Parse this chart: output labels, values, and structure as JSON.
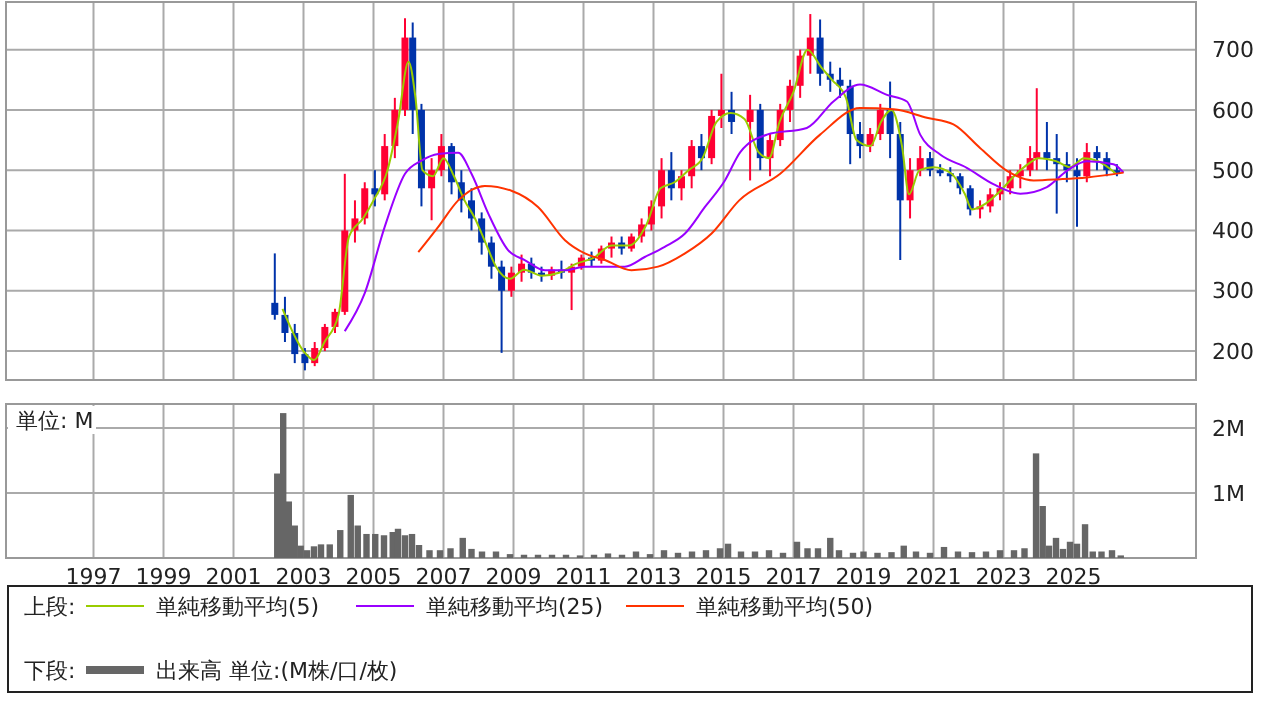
{
  "chart_data": [
    {
      "type": "candlestick",
      "xlim": [
        1994.5,
        2028.5
      ],
      "xticks": [
        1997,
        1999,
        2001,
        2003,
        2005,
        2007,
        2009,
        2011,
        2013,
        2015,
        2017,
        2019,
        2021,
        2023,
        2025
      ],
      "ylim": [
        152,
        779
      ],
      "yticks": [
        200,
        300,
        400,
        500,
        600,
        700
      ],
      "grid": true,
      "tick_labels": "y",
      "legend": "bottom",
      "legend_title": "上段:",
      "colors": [
        "#0033aa",
        "#0033aa",
        "#0033aa",
        "#0033aa",
        "#ff0033",
        "#ff0033",
        "#ff0033",
        "#ff0033",
        "#ff0033",
        "#ff0033",
        "#0033aa",
        "#ff0033",
        "#ff0033",
        "#ff0033",
        "#0033aa",
        "#0033aa",
        "#ff0033",
        "#ff0033",
        "#0033aa",
        "#0033aa",
        "#0033aa",
        "#0033aa",
        "#0033aa",
        "#0033aa",
        "#ff0033",
        "#ff0033",
        "#0033aa",
        "#0033aa",
        "#ff0033",
        "#0033aa",
        "#ff0033",
        "#ff0033",
        "#0033aa",
        "#ff0033",
        "#ff0033",
        "#0033aa",
        "#ff0033",
        "#ff0033",
        "#ff0033",
        "#ff0033",
        "#0033aa",
        "#ff0033",
        "#ff0033",
        "#0033aa",
        "#ff0033",
        "#ff0033",
        "#0033aa",
        "#ff0033",
        "#0033aa",
        "#ff0033",
        "#ff0033",
        "#ff0033",
        "#ff0033",
        "#ff0033",
        "#0033aa",
        "#0033aa",
        "#0033aa",
        "#0033aa",
        "#0033aa",
        "#ff0033",
        "#ff0033",
        "#0033aa",
        "#0033aa",
        "#ff0033",
        "#ff0033",
        "#0033aa",
        "#0033aa",
        "#0033aa",
        "#0033aa",
        "#0033aa",
        "#ff0033",
        "#ff0033",
        "#ff0033",
        "#ff0033",
        "#ff0033",
        "#ff0033",
        "#ff0033",
        "#0033aa",
        "#0033aa",
        "#0033aa",
        "#0033aa",
        "#ff0033",
        "#0033aa",
        "#0033aa",
        "#0033aa"
      ],
      "x": [
        2002.18,
        2002.47,
        2002.75,
        2003.04,
        2003.32,
        2003.61,
        2003.9,
        2004.18,
        2004.47,
        2004.75,
        2005.04,
        2005.32,
        2005.61,
        2005.9,
        2006.12,
        2006.37,
        2006.66,
        2006.94,
        2007.23,
        2007.51,
        2007.8,
        2008.09,
        2008.37,
        2008.66,
        2008.94,
        2009.23,
        2009.51,
        2009.8,
        2010.09,
        2010.37,
        2010.66,
        2010.94,
        2011.23,
        2011.51,
        2011.8,
        2012.09,
        2012.37,
        2012.66,
        2012.94,
        2013.23,
        2013.51,
        2013.8,
        2014.09,
        2014.37,
        2014.66,
        2014.94,
        2015.23,
        2015.76,
        2016.05,
        2016.33,
        2016.62,
        2016.9,
        2017.19,
        2017.48,
        2017.76,
        2018.05,
        2018.33,
        2018.62,
        2018.9,
        2019.19,
        2019.48,
        2019.76,
        2020.05,
        2020.33,
        2020.62,
        2020.9,
        2021.19,
        2021.48,
        2021.76,
        2022.05,
        2022.33,
        2022.62,
        2022.9,
        2023.19,
        2023.48,
        2023.76,
        2023.95,
        2024.24,
        2024.52,
        2024.81,
        2025.1,
        2025.38,
        2025.67,
        2025.95,
        2026.24
      ],
      "ohlc": [
        [
          280,
          362,
          252,
          260
        ],
        [
          260,
          290,
          215,
          230
        ],
        [
          230,
          245,
          180,
          195
        ],
        [
          195,
          205,
          168,
          180
        ],
        [
          180,
          215,
          175,
          205
        ],
        [
          205,
          245,
          200,
          240
        ],
        [
          240,
          270,
          230,
          265
        ],
        [
          265,
          494,
          260,
          400
        ],
        [
          400,
          450,
          380,
          420
        ],
        [
          420,
          480,
          410,
          470
        ],
        [
          470,
          500,
          440,
          460
        ],
        [
          460,
          560,
          450,
          540
        ],
        [
          540,
          620,
          520,
          600
        ],
        [
          600,
          752,
          590,
          720
        ],
        [
          720,
          745,
          560,
          600
        ],
        [
          600,
          610,
          440,
          470
        ],
        [
          470,
          520,
          417,
          500
        ],
        [
          500,
          560,
          490,
          540
        ],
        [
          540,
          545,
          460,
          480
        ],
        [
          480,
          500,
          430,
          450
        ],
        [
          450,
          470,
          400,
          420
        ],
        [
          420,
          430,
          360,
          380
        ],
        [
          380,
          390,
          320,
          340
        ],
        [
          340,
          350,
          197,
          300
        ],
        [
          300,
          340,
          290,
          330
        ],
        [
          330,
          360,
          315,
          345
        ],
        [
          345,
          355,
          320,
          330
        ],
        [
          330,
          340,
          315,
          325
        ],
        [
          325,
          340,
          318,
          335
        ],
        [
          335,
          350,
          320,
          330
        ],
        [
          330,
          345,
          268,
          340
        ],
        [
          340,
          360,
          335,
          355
        ],
        [
          355,
          365,
          340,
          350
        ],
        [
          350,
          375,
          345,
          370
        ],
        [
          370,
          390,
          355,
          380
        ],
        [
          380,
          390,
          360,
          370
        ],
        [
          370,
          395,
          365,
          390
        ],
        [
          390,
          420,
          380,
          410
        ],
        [
          410,
          450,
          400,
          440
        ],
        [
          440,
          520,
          420,
          500
        ],
        [
          500,
          530,
          450,
          470
        ],
        [
          470,
          500,
          450,
          490
        ],
        [
          490,
          550,
          470,
          540
        ],
        [
          540,
          560,
          500,
          520
        ],
        [
          520,
          600,
          510,
          590
        ],
        [
          590,
          660,
          570,
          600
        ],
        [
          600,
          630,
          560,
          580
        ],
        [
          580,
          625,
          483,
          600
        ],
        [
          600,
          610,
          500,
          520
        ],
        [
          520,
          560,
          490,
          550
        ],
        [
          550,
          610,
          540,
          600
        ],
        [
          600,
          650,
          580,
          640
        ],
        [
          640,
          700,
          620,
          690
        ],
        [
          690,
          759,
          660,
          720
        ],
        [
          720,
          750,
          640,
          660
        ],
        [
          660,
          680,
          630,
          650
        ],
        [
          650,
          670,
          620,
          640
        ],
        [
          640,
          650,
          510,
          560
        ],
        [
          560,
          580,
          520,
          540
        ],
        [
          540,
          570,
          530,
          560
        ],
        [
          560,
          610,
          550,
          600
        ],
        [
          600,
          647,
          520,
          560
        ],
        [
          560,
          580,
          351,
          450
        ],
        [
          450,
          520,
          420,
          500
        ],
        [
          500,
          540,
          490,
          520
        ],
        [
          520,
          530,
          490,
          500
        ],
        [
          500,
          510,
          490,
          495
        ],
        [
          495,
          505,
          480,
          490
        ],
        [
          490,
          495,
          460,
          470
        ],
        [
          470,
          475,
          425,
          435
        ],
        [
          435,
          450,
          420,
          440
        ],
        [
          440,
          470,
          430,
          460
        ],
        [
          460,
          480,
          450,
          470
        ],
        [
          470,
          500,
          460,
          490
        ],
        [
          490,
          510,
          470,
          500
        ],
        [
          500,
          540,
          490,
          520
        ],
        [
          520,
          636,
          500,
          530
        ],
        [
          530,
          580,
          500,
          520
        ],
        [
          520,
          560,
          428,
          510
        ],
        [
          510,
          530,
          480,
          500
        ],
        [
          500,
          520,
          406,
          490
        ],
        [
          490,
          545,
          480,
          530
        ],
        [
          530,
          540,
          500,
          520
        ],
        [
          520,
          530,
          490,
          500
        ],
        [
          500,
          510,
          490,
          495
        ]
      ],
      "series": [
        {
          "type": "line",
          "name": "単純移動平均(5)",
          "color": "#99cc00",
          "x": [
            2002.4,
            2003.0,
            2003.3,
            2003.6,
            2004.0,
            2004.3,
            2004.7,
            2005.0,
            2005.4,
            2005.7,
            2006.0,
            2006.2,
            2006.4,
            2006.7,
            2007.0,
            2007.3,
            2007.6,
            2007.9,
            2008.2,
            2008.5,
            2008.9,
            2009.3,
            2009.8,
            2010.3,
            2010.8,
            2011.3,
            2011.8,
            2012.3,
            2012.8,
            2013.2,
            2013.6,
            2014.0,
            2014.4,
            2014.8,
            2015.2,
            2015.6,
            2016.0,
            2016.3,
            2016.6,
            2017.0,
            2017.4,
            2017.8,
            2018.1,
            2018.5,
            2018.8,
            2019.2,
            2019.5,
            2019.8,
            2020.1,
            2020.3,
            2020.6,
            2021.0,
            2021.5,
            2021.9,
            2022.1,
            2022.5,
            2022.9,
            2023.3,
            2023.7,
            2024.0,
            2024.5,
            2024.9,
            2025.3,
            2025.7,
            2026.2
          ],
          "values": [
            270,
            200,
            185,
            215,
            260,
            390,
            420,
            450,
            500,
            580,
            680,
            620,
            500,
            490,
            520,
            490,
            450,
            420,
            380,
            340,
            320,
            335,
            325,
            330,
            345,
            355,
            375,
            375,
            410,
            470,
            480,
            500,
            520,
            580,
            595,
            585,
            530,
            520,
            580,
            630,
            700,
            670,
            650,
            620,
            550,
            540,
            580,
            600,
            540,
            460,
            500,
            505,
            495,
            460,
            435,
            445,
            465,
            490,
            510,
            520,
            515,
            505,
            520,
            515,
            495
          ]
        },
        {
          "type": "line",
          "name": "単純移動平均(25)",
          "color": "#9900ff",
          "x": [
            2004.18,
            2004.75,
            2005.32,
            2005.9,
            2006.37,
            2006.85,
            2007.42,
            2007.8,
            2008.28,
            2008.85,
            2009.32,
            2009.9,
            2010.47,
            2011.04,
            2011.61,
            2012.18,
            2012.75,
            2013.32,
            2013.9,
            2014.47,
            2015.04,
            2015.48,
            2016.24,
            2017.38,
            2018.14,
            2018.9,
            2019.67,
            2020.24,
            2020.62,
            2021.19,
            2021.95,
            2022.71,
            2023.48,
            2024.24,
            2024.81,
            2025.38,
            2026.14,
            2026.43
          ],
          "values": [
            233,
            296,
            406,
            494,
            516,
            527,
            529,
            494,
            428,
            367,
            351,
            334,
            334,
            340,
            340,
            340,
            356,
            373,
            395,
            439,
            483,
            530,
            559,
            570,
            614,
            642,
            625,
            614,
            559,
            526,
            504,
            477,
            461,
            472,
            499,
            515,
            510,
            496
          ]
        },
        {
          "type": "line",
          "name": "単純移動平均(50)",
          "color": "#ff3300",
          "x": [
            2006.28,
            2006.85,
            2007.42,
            2008.18,
            2008.94,
            2009.7,
            2010.47,
            2011.04,
            2011.61,
            2012.37,
            2013.13,
            2013.9,
            2014.66,
            2015.45,
            2016.62,
            2017.76,
            2018.9,
            2019.86,
            2020.81,
            2021.57,
            2022.33,
            2023.1,
            2023.86,
            2024.62,
            2025.38,
            2026.43
          ],
          "values": [
            364,
            406,
            450,
            474,
            466,
            439,
            384,
            362,
            351,
            334,
            340,
            362,
            395,
            450,
            494,
            559,
            603,
            601,
            587,
            576,
            537,
            499,
            483,
            485,
            488,
            496
          ]
        }
      ]
    },
    {
      "type": "bar",
      "ylabel": "単位: M",
      "xlim": [
        1994.5,
        2028.5
      ],
      "xticks": [
        1997,
        1999,
        2001,
        2003,
        2005,
        2007,
        2009,
        2011,
        2013,
        2015,
        2017,
        2019,
        2021,
        2023,
        2025
      ],
      "ylim": [
        0,
        2.37
      ],
      "yticks": [
        {
          "value": 1,
          "label": "1M"
        },
        {
          "value": 2,
          "label": "2M"
        }
      ],
      "grid": true,
      "legend": "bottom",
      "legend_title": "下段:",
      "x": [
        2002.25,
        2002.42,
        2002.58,
        2002.75,
        2002.92,
        2003.1,
        2003.3,
        2003.5,
        2003.75,
        2004.05,
        2004.35,
        2004.55,
        2004.8,
        2005.05,
        2005.3,
        2005.55,
        2005.7,
        2005.9,
        2006.1,
        2006.3,
        2006.6,
        2006.9,
        2007.2,
        2007.55,
        2007.8,
        2008.1,
        2008.5,
        2008.9,
        2009.3,
        2009.7,
        2010.1,
        2010.5,
        2010.9,
        2011.3,
        2011.7,
        2012.1,
        2012.5,
        2012.9,
        2013.3,
        2013.7,
        2014.1,
        2014.5,
        2014.9,
        2015.13,
        2015.5,
        2015.9,
        2016.3,
        2016.7,
        2017.1,
        2017.4,
        2017.7,
        2018.05,
        2018.3,
        2018.7,
        2019.0,
        2019.4,
        2019.8,
        2020.15,
        2020.5,
        2020.9,
        2021.3,
        2021.7,
        2022.1,
        2022.5,
        2022.9,
        2023.3,
        2023.6,
        2023.93,
        2024.12,
        2024.3,
        2024.5,
        2024.7,
        2024.9,
        2025.1,
        2025.33,
        2025.55,
        2025.8,
        2026.1,
        2026.35
      ],
      "series": [
        {
          "name": "出来高 単位:(M株/口/枚)",
          "color": "#666666",
          "values": [
            1.3,
            2.23,
            0.87,
            0.5,
            0.19,
            0.12,
            0.18,
            0.21,
            0.21,
            0.43,
            0.97,
            0.5,
            0.37,
            0.37,
            0.35,
            0.4,
            0.45,
            0.35,
            0.37,
            0.2,
            0.12,
            0.12,
            0.15,
            0.31,
            0.14,
            0.1,
            0.1,
            0.06,
            0.05,
            0.05,
            0.05,
            0.05,
            0.04,
            0.05,
            0.07,
            0.05,
            0.1,
            0.06,
            0.12,
            0.08,
            0.1,
            0.12,
            0.15,
            0.22,
            0.1,
            0.1,
            0.12,
            0.08,
            0.25,
            0.15,
            0.15,
            0.31,
            0.12,
            0.08,
            0.1,
            0.08,
            0.09,
            0.19,
            0.1,
            0.08,
            0.17,
            0.1,
            0.09,
            0.1,
            0.12,
            0.12,
            0.15,
            1.61,
            0.8,
            0.19,
            0.31,
            0.14,
            0.25,
            0.22,
            0.52,
            0.1,
            0.1,
            0.12,
            0.04
          ]
        }
      ]
    }
  ]
}
